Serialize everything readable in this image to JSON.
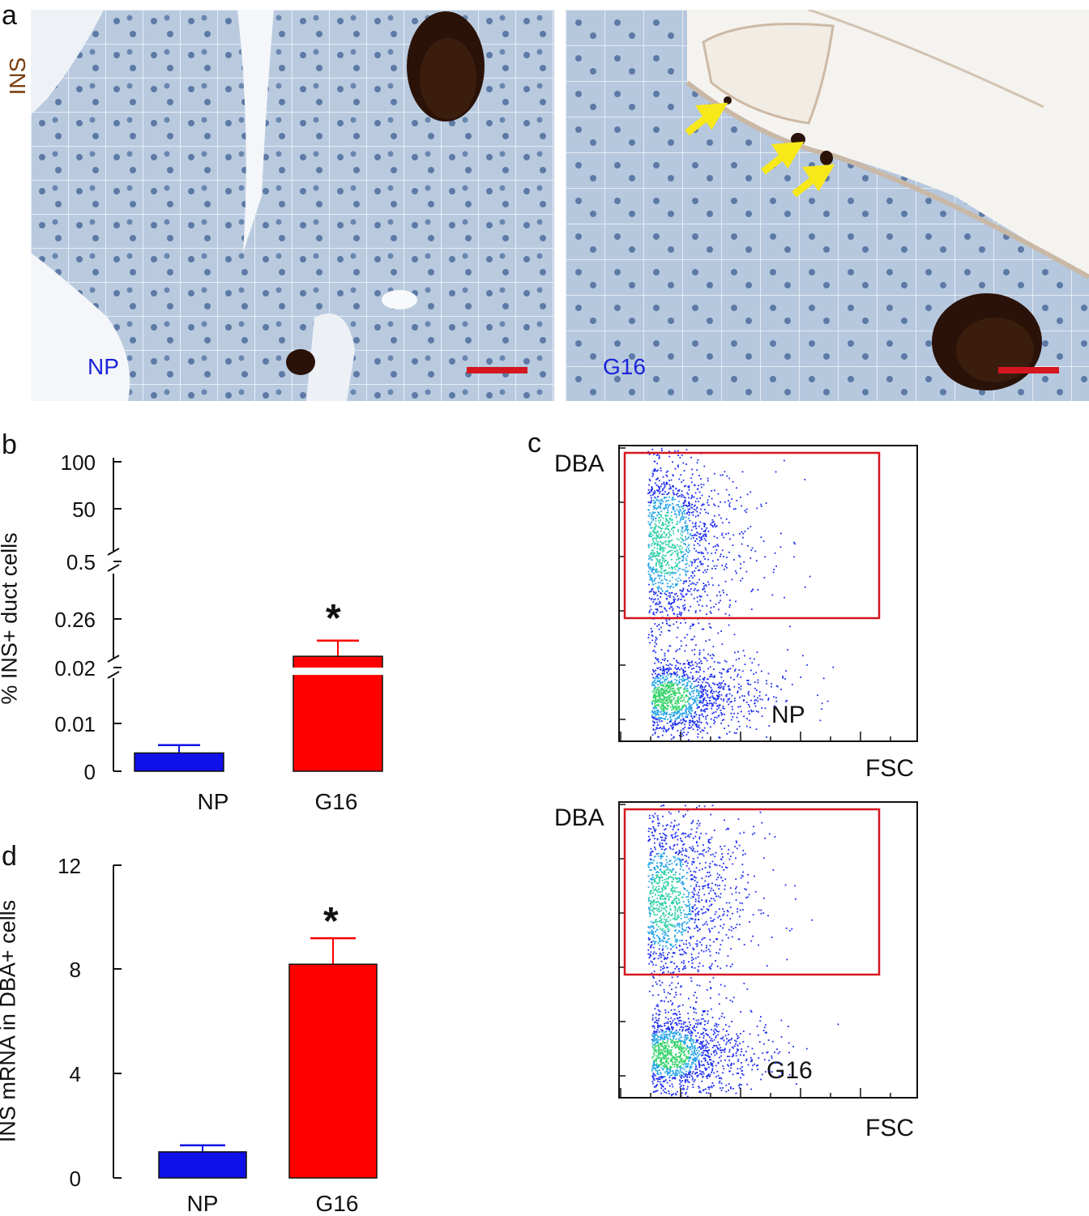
{
  "panels": {
    "a": {
      "letter": "a",
      "stain_label": "INS",
      "stain_color": "#7a3f10",
      "images": [
        {
          "label": "NP",
          "label_color": "#1a24d8"
        },
        {
          "label": "G16",
          "label_color": "#1a24d8"
        }
      ],
      "scale_bar_color": "#d4161f",
      "arrow_color": "#f7e81a"
    },
    "b": {
      "letter": "b",
      "ylabel": "% INS+ duct cells",
      "yticks_upper": [
        "100",
        "50"
      ],
      "yticks_mid": [
        "0.5",
        "0.26"
      ],
      "yticks_lower": [
        "0.02",
        "0.01",
        "0"
      ],
      "significance": "*"
    },
    "c": {
      "letter": "c",
      "plots": [
        {
          "sample": "NP",
          "ylabel": "DBA",
          "xlabel": "FSC"
        },
        {
          "sample": "G16",
          "ylabel": "DBA",
          "xlabel": "FSC"
        }
      ],
      "gate_color": "#d4161f",
      "dot_color": "#1c2cf0"
    },
    "d": {
      "letter": "d",
      "ylabel": "INS mRNA in DBA+ cells",
      "yticks": [
        "12",
        "8",
        "4",
        "0"
      ],
      "significance": "*"
    }
  },
  "chart_data": [
    {
      "type": "bar",
      "panel": "b",
      "ylabel": "% INS+ duct cells",
      "axis_break": true,
      "categories": [
        "NP",
        "G16"
      ],
      "values": [
        0.0035,
        0.022
      ],
      "error": [
        0.0015,
        0.003
      ],
      "colors": [
        "#1010e8",
        "#ff0000"
      ],
      "yticks": [
        0,
        0.01,
        0.02,
        0.26,
        0.5,
        50,
        100
      ],
      "significant": [
        false,
        true
      ]
    },
    {
      "type": "bar",
      "panel": "d",
      "ylabel": "INS mRNA in DBA+ cells",
      "categories": [
        "NP",
        "G16"
      ],
      "values": [
        1.0,
        8.2
      ],
      "error": [
        0.25,
        1.0
      ],
      "colors": [
        "#1010e8",
        "#ff0000"
      ],
      "ylim": [
        0,
        12
      ],
      "yticks": [
        0,
        4,
        8,
        12
      ],
      "significant": [
        false,
        true
      ]
    },
    {
      "type": "scatter",
      "panel": "c",
      "xlabel": "FSC",
      "ylabel": "DBA",
      "samples": [
        "NP",
        "G16"
      ],
      "gate": "DBA-high rectangle",
      "populations": [
        "DBA-high",
        "DBA-low"
      ]
    }
  ]
}
